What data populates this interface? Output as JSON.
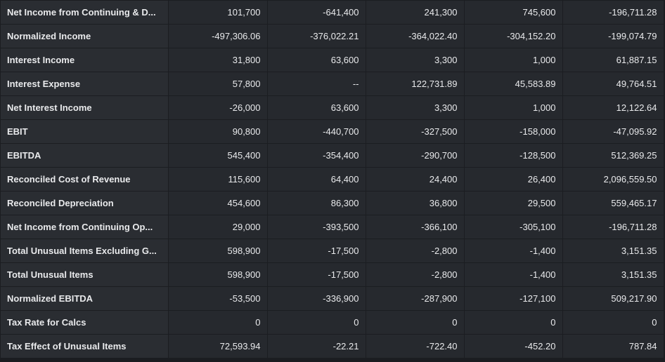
{
  "table": {
    "rows": [
      {
        "label": "Net Income from Continuing & D...",
        "values": [
          "101,700",
          "-641,400",
          "241,300",
          "745,600",
          "-196,711.28"
        ]
      },
      {
        "label": "Normalized Income",
        "values": [
          "-497,306.06",
          "-376,022.21",
          "-364,022.40",
          "-304,152.20",
          "-199,074.79"
        ]
      },
      {
        "label": "Interest Income",
        "values": [
          "31,800",
          "63,600",
          "3,300",
          "1,000",
          "61,887.15"
        ]
      },
      {
        "label": "Interest Expense",
        "values": [
          "57,800",
          "--",
          "122,731.89",
          "45,583.89",
          "49,764.51"
        ]
      },
      {
        "label": "Net Interest Income",
        "values": [
          "-26,000",
          "63,600",
          "3,300",
          "1,000",
          "12,122.64"
        ]
      },
      {
        "label": "EBIT",
        "values": [
          "90,800",
          "-440,700",
          "-327,500",
          "-158,000",
          "-47,095.92"
        ]
      },
      {
        "label": "EBITDA",
        "values": [
          "545,400",
          "-354,400",
          "-290,700",
          "-128,500",
          "512,369.25"
        ]
      },
      {
        "label": "Reconciled Cost of Revenue",
        "values": [
          "115,600",
          "64,400",
          "24,400",
          "26,400",
          "2,096,559.50"
        ]
      },
      {
        "label": "Reconciled Depreciation",
        "values": [
          "454,600",
          "86,300",
          "36,800",
          "29,500",
          "559,465.17"
        ]
      },
      {
        "label": "Net Income from Continuing Op...",
        "values": [
          "29,000",
          "-393,500",
          "-366,100",
          "-305,100",
          "-196,711.28"
        ]
      },
      {
        "label": "Total Unusual Items Excluding G...",
        "values": [
          "598,900",
          "-17,500",
          "-2,800",
          "-1,400",
          "3,151.35"
        ]
      },
      {
        "label": "Total Unusual Items",
        "values": [
          "598,900",
          "-17,500",
          "-2,800",
          "-1,400",
          "3,151.35"
        ]
      },
      {
        "label": "Normalized EBITDA",
        "values": [
          "-53,500",
          "-336,900",
          "-287,900",
          "-127,100",
          "509,217.90"
        ]
      },
      {
        "label": "Tax Rate for Calcs",
        "values": [
          "0",
          "0",
          "0",
          "0",
          "0"
        ]
      },
      {
        "label": "Tax Effect of Unusual Items",
        "values": [
          "72,593.94",
          "-22.21",
          "-722.40",
          "-452.20",
          "787.84"
        ]
      }
    ]
  },
  "colors": {
    "background": "#1b1d21",
    "cell": "#26292e",
    "label_cell": "#2a2d32",
    "text": "#e9eaec"
  }
}
